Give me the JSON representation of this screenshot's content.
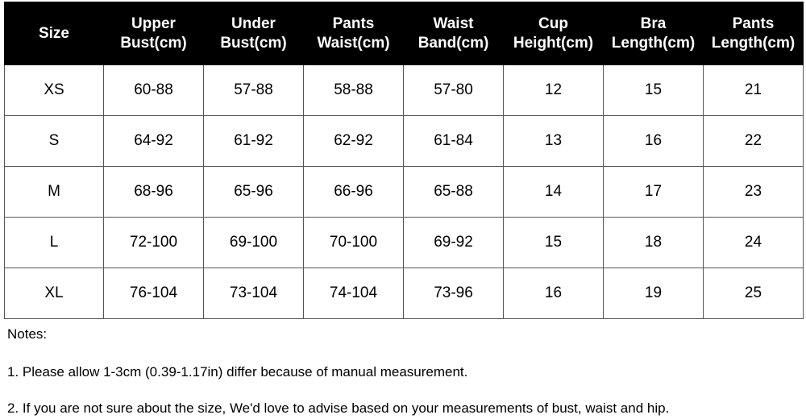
{
  "table": {
    "header": [
      "Size",
      "Upper\nBust(cm)",
      "Under\nBust(cm)",
      "Pants\nWaist(cm)",
      "Waist\nBand(cm)",
      "Cup\nHeight(cm)",
      "Bra\nLength(cm)",
      "Pants\nLength(cm)"
    ],
    "rows": [
      [
        "XS",
        "60-88",
        "57-88",
        "58-88",
        "57-80",
        12,
        15,
        21
      ],
      [
        "S",
        "64-92",
        "61-92",
        "62-92",
        "61-84",
        13,
        16,
        22
      ],
      [
        "M",
        "68-96",
        "65-96",
        "66-96",
        "65-88",
        14,
        17,
        23
      ],
      [
        "L",
        "72-100",
        "69-100",
        "70-100",
        "69-92",
        15,
        18,
        24
      ],
      [
        "XL",
        "76-104",
        "73-104",
        "74-104",
        "73-96",
        16,
        19,
        25
      ]
    ]
  },
  "notes": {
    "title": "Notes:",
    "items": [
      "1. Please allow 1-3cm (0.39-1.17in) differ because of manual measurement.",
      "2. If you are not sure about the size, We'd love to advise based on your measurements of bust, waist and hip."
    ]
  }
}
